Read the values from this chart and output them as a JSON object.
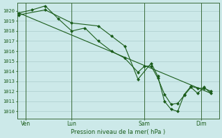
{
  "title": "Pression niveau de la mer( hPa )",
  "ylabel_ticks": [
    1010,
    1011,
    1012,
    1013,
    1014,
    1015,
    1016,
    1017,
    1018,
    1019,
    1020
  ],
  "ylim": [
    1009.3,
    1020.8
  ],
  "xlim": [
    -2,
    242
  ],
  "background_color": "#cce9e9",
  "grid_color": "#aacccc",
  "line_color": "#1a5c1a",
  "marker_color": "#1a5c1a",
  "day_labels": [
    "Ven",
    "Lun",
    "Sam",
    "Dim"
  ],
  "day_positions": [
    8,
    64,
    152,
    220
  ],
  "day_vlines": [
    8,
    64,
    152,
    220
  ],
  "series1": [
    [
      0,
      1019.8
    ],
    [
      16,
      1020.1
    ],
    [
      32,
      1020.5
    ],
    [
      48,
      1019.2
    ],
    [
      64,
      1018.0
    ],
    [
      80,
      1018.3
    ],
    [
      96,
      1017.0
    ],
    [
      112,
      1016.0
    ],
    [
      128,
      1015.3
    ],
    [
      144,
      1013.9
    ],
    [
      152,
      1014.5
    ],
    [
      160,
      1014.5
    ],
    [
      168,
      1013.3
    ],
    [
      176,
      1011.7
    ],
    [
      184,
      1010.7
    ],
    [
      192,
      1010.8
    ],
    [
      200,
      1011.6
    ],
    [
      208,
      1012.4
    ],
    [
      216,
      1011.8
    ],
    [
      224,
      1012.4
    ],
    [
      232,
      1011.8
    ]
  ],
  "series2": [
    [
      0,
      1019.6
    ],
    [
      32,
      1020.1
    ],
    [
      64,
      1018.8
    ],
    [
      96,
      1018.5
    ],
    [
      112,
      1017.5
    ],
    [
      128,
      1016.5
    ],
    [
      144,
      1013.2
    ],
    [
      160,
      1014.8
    ],
    [
      168,
      1013.5
    ],
    [
      176,
      1011.0
    ],
    [
      184,
      1010.2
    ],
    [
      192,
      1010.0
    ],
    [
      200,
      1011.7
    ],
    [
      208,
      1012.5
    ],
    [
      216,
      1012.3
    ],
    [
      224,
      1012.3
    ],
    [
      232,
      1012.0
    ]
  ],
  "series3": [
    [
      0,
      1019.8
    ],
    [
      232,
      1011.8
    ]
  ]
}
